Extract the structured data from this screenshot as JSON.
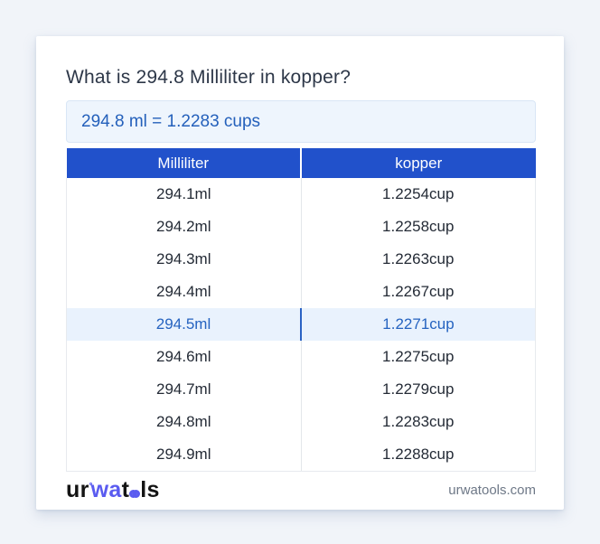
{
  "title": "What is 294.8 Milliliter in kopper?",
  "answer": "294.8 ml = 1.2283 cups",
  "table": {
    "headers": [
      "Milliliter",
      "kopper"
    ],
    "rows": [
      {
        "ml": "294.1ml",
        "cup": "1.2254cup"
      },
      {
        "ml": "294.2ml",
        "cup": "1.2258cup"
      },
      {
        "ml": "294.3ml",
        "cup": "1.2263cup"
      },
      {
        "ml": "294.4ml",
        "cup": "1.2267cup"
      },
      {
        "ml": "294.5ml",
        "cup": "1.2271cup"
      },
      {
        "ml": "294.6ml",
        "cup": "1.2275cup"
      },
      {
        "ml": "294.7ml",
        "cup": "1.2279cup"
      },
      {
        "ml": "294.8ml",
        "cup": "1.2283cup"
      },
      {
        "ml": "294.9ml",
        "cup": "1.2288cup"
      }
    ],
    "highlight_row_index": 4
  },
  "footer": {
    "logo": {
      "part1": "ur",
      "part2": "wa",
      "part3": "t",
      "part4": "ls"
    },
    "domain": "urwatools.com"
  },
  "colors": {
    "header_blue": "#2151cb",
    "accent_blue": "#2563c0",
    "logo_blue": "#5a5bf0",
    "highlight_bg": "#e9f2fd",
    "answer_bg": "#eef5fd"
  }
}
